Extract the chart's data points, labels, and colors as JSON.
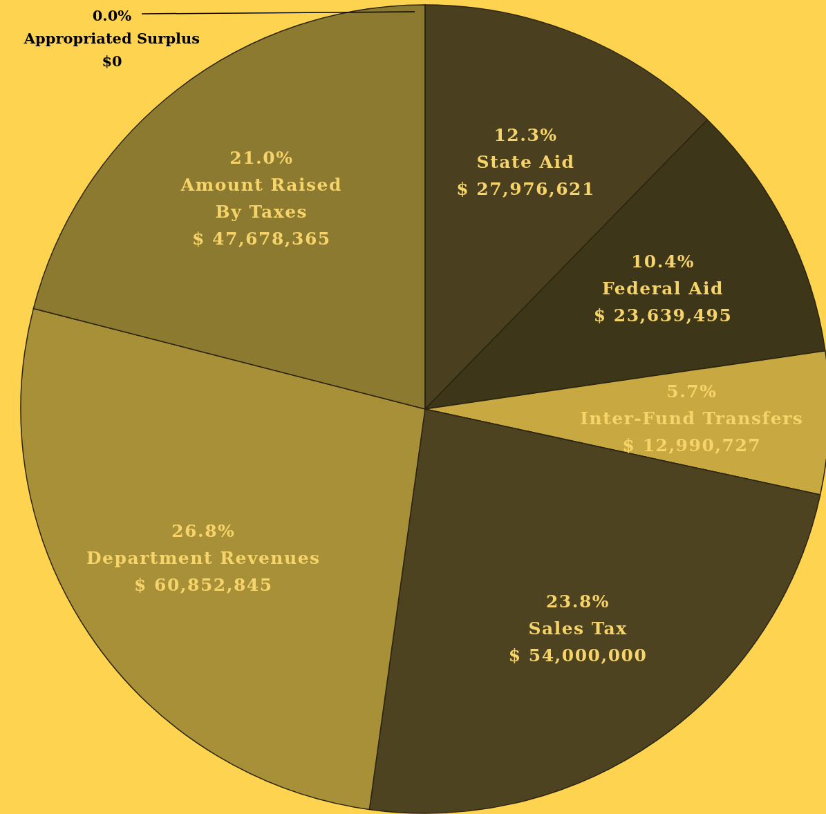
{
  "chart_data": {
    "type": "pie",
    "categories": [
      "State Aid",
      "Federal Aid",
      "Inter-Fund Transfers",
      "Sales Tax",
      "Department Revenues",
      "Amount Raised\nBy Taxes",
      "Appropriated Surplus"
    ],
    "values": [
      12.3,
      10.4,
      5.7,
      23.8,
      26.8,
      21.0,
      0.0
    ],
    "colors": [
      "#4a4020",
      "#3e3618",
      "#c8a840",
      "#4d4320",
      "#a89038",
      "#8c7a30",
      "#7a6a2c"
    ],
    "value_labels": [
      "12.3%\n$ 27,976,621",
      "10.4%\n$ 23,639,495",
      "5.7%\n$ 12,990,727",
      "23.8%\n$ 54,000,000",
      "26.8%\n$ 60,852,845",
      "21.0%\n$ 47,678,365",
      "0.0%\n$0"
    ]
  }
}
